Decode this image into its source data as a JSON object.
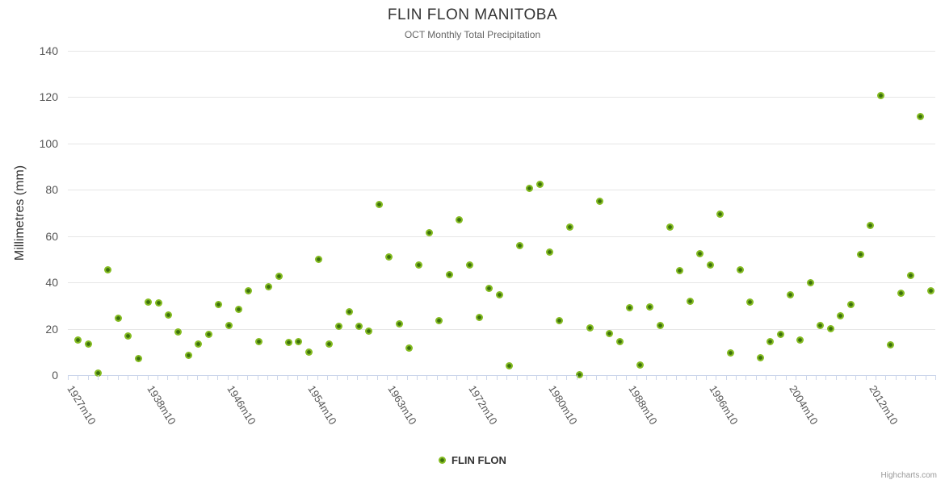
{
  "chart_data": {
    "type": "scatter",
    "title": "FLIN FLON MANITOBA",
    "subtitle": "OCT Monthly Total Precipitation",
    "ylabel": "Millimetres (mm)",
    "ylim": [
      0,
      140
    ],
    "yticks": [
      0,
      20,
      40,
      60,
      80,
      100,
      120,
      140
    ],
    "grid": "horizontal-only",
    "legend_position": "bottom-center",
    "legend_label": "FLIN FLON",
    "credits_label": "Highcharts.com",
    "x_tick_label_every": 8,
    "x_tick_labels": [
      "1927m10",
      "1938m10",
      "1946m10",
      "1954m10",
      "1963m10",
      "1972m10",
      "1980m10",
      "1988m10",
      "1996m10",
      "2004m10",
      "2012m10"
    ],
    "series": [
      {
        "name": "FLIN FLON",
        "values_mm_by_category": [
          15,
          13.5,
          1,
          45.5,
          24.5,
          17,
          7,
          31.5,
          31,
          26,
          18.5,
          8.5,
          13.5,
          17.5,
          30.5,
          21.5,
          28.5,
          36.5,
          14.5,
          38,
          42.5,
          14,
          14.5,
          10,
          50,
          13.5,
          21,
          27.5,
          21,
          19,
          73.5,
          51,
          22,
          11.5,
          47.5,
          61.5,
          23.5,
          43.5,
          67,
          47.5,
          25,
          37.5,
          34.5,
          4,
          56,
          80.5,
          82.5,
          53,
          23.5,
          64,
          0.3,
          20.5,
          75,
          18,
          14.5,
          29,
          4.5,
          29.5,
          21.5,
          64,
          45,
          32,
          52.5,
          47.5,
          69.5,
          9.5,
          45.5,
          31.5,
          7.5,
          14.5,
          17.5,
          34.5,
          15,
          40,
          21.5,
          20,
          25.5,
          30.5,
          52,
          64.5,
          120.5,
          13,
          35.5,
          43,
          111.5,
          36.5
        ]
      }
    ],
    "colors": {
      "marker_outer": "#84bb21",
      "marker_inner": "#3c700d",
      "gridline": "#e6e6e6",
      "axis_tick": "#ccd6eb",
      "title_text": "#333333",
      "subtitle_text": "#666666",
      "axis_label_text": "#555555",
      "credits_text": "#999999"
    }
  }
}
